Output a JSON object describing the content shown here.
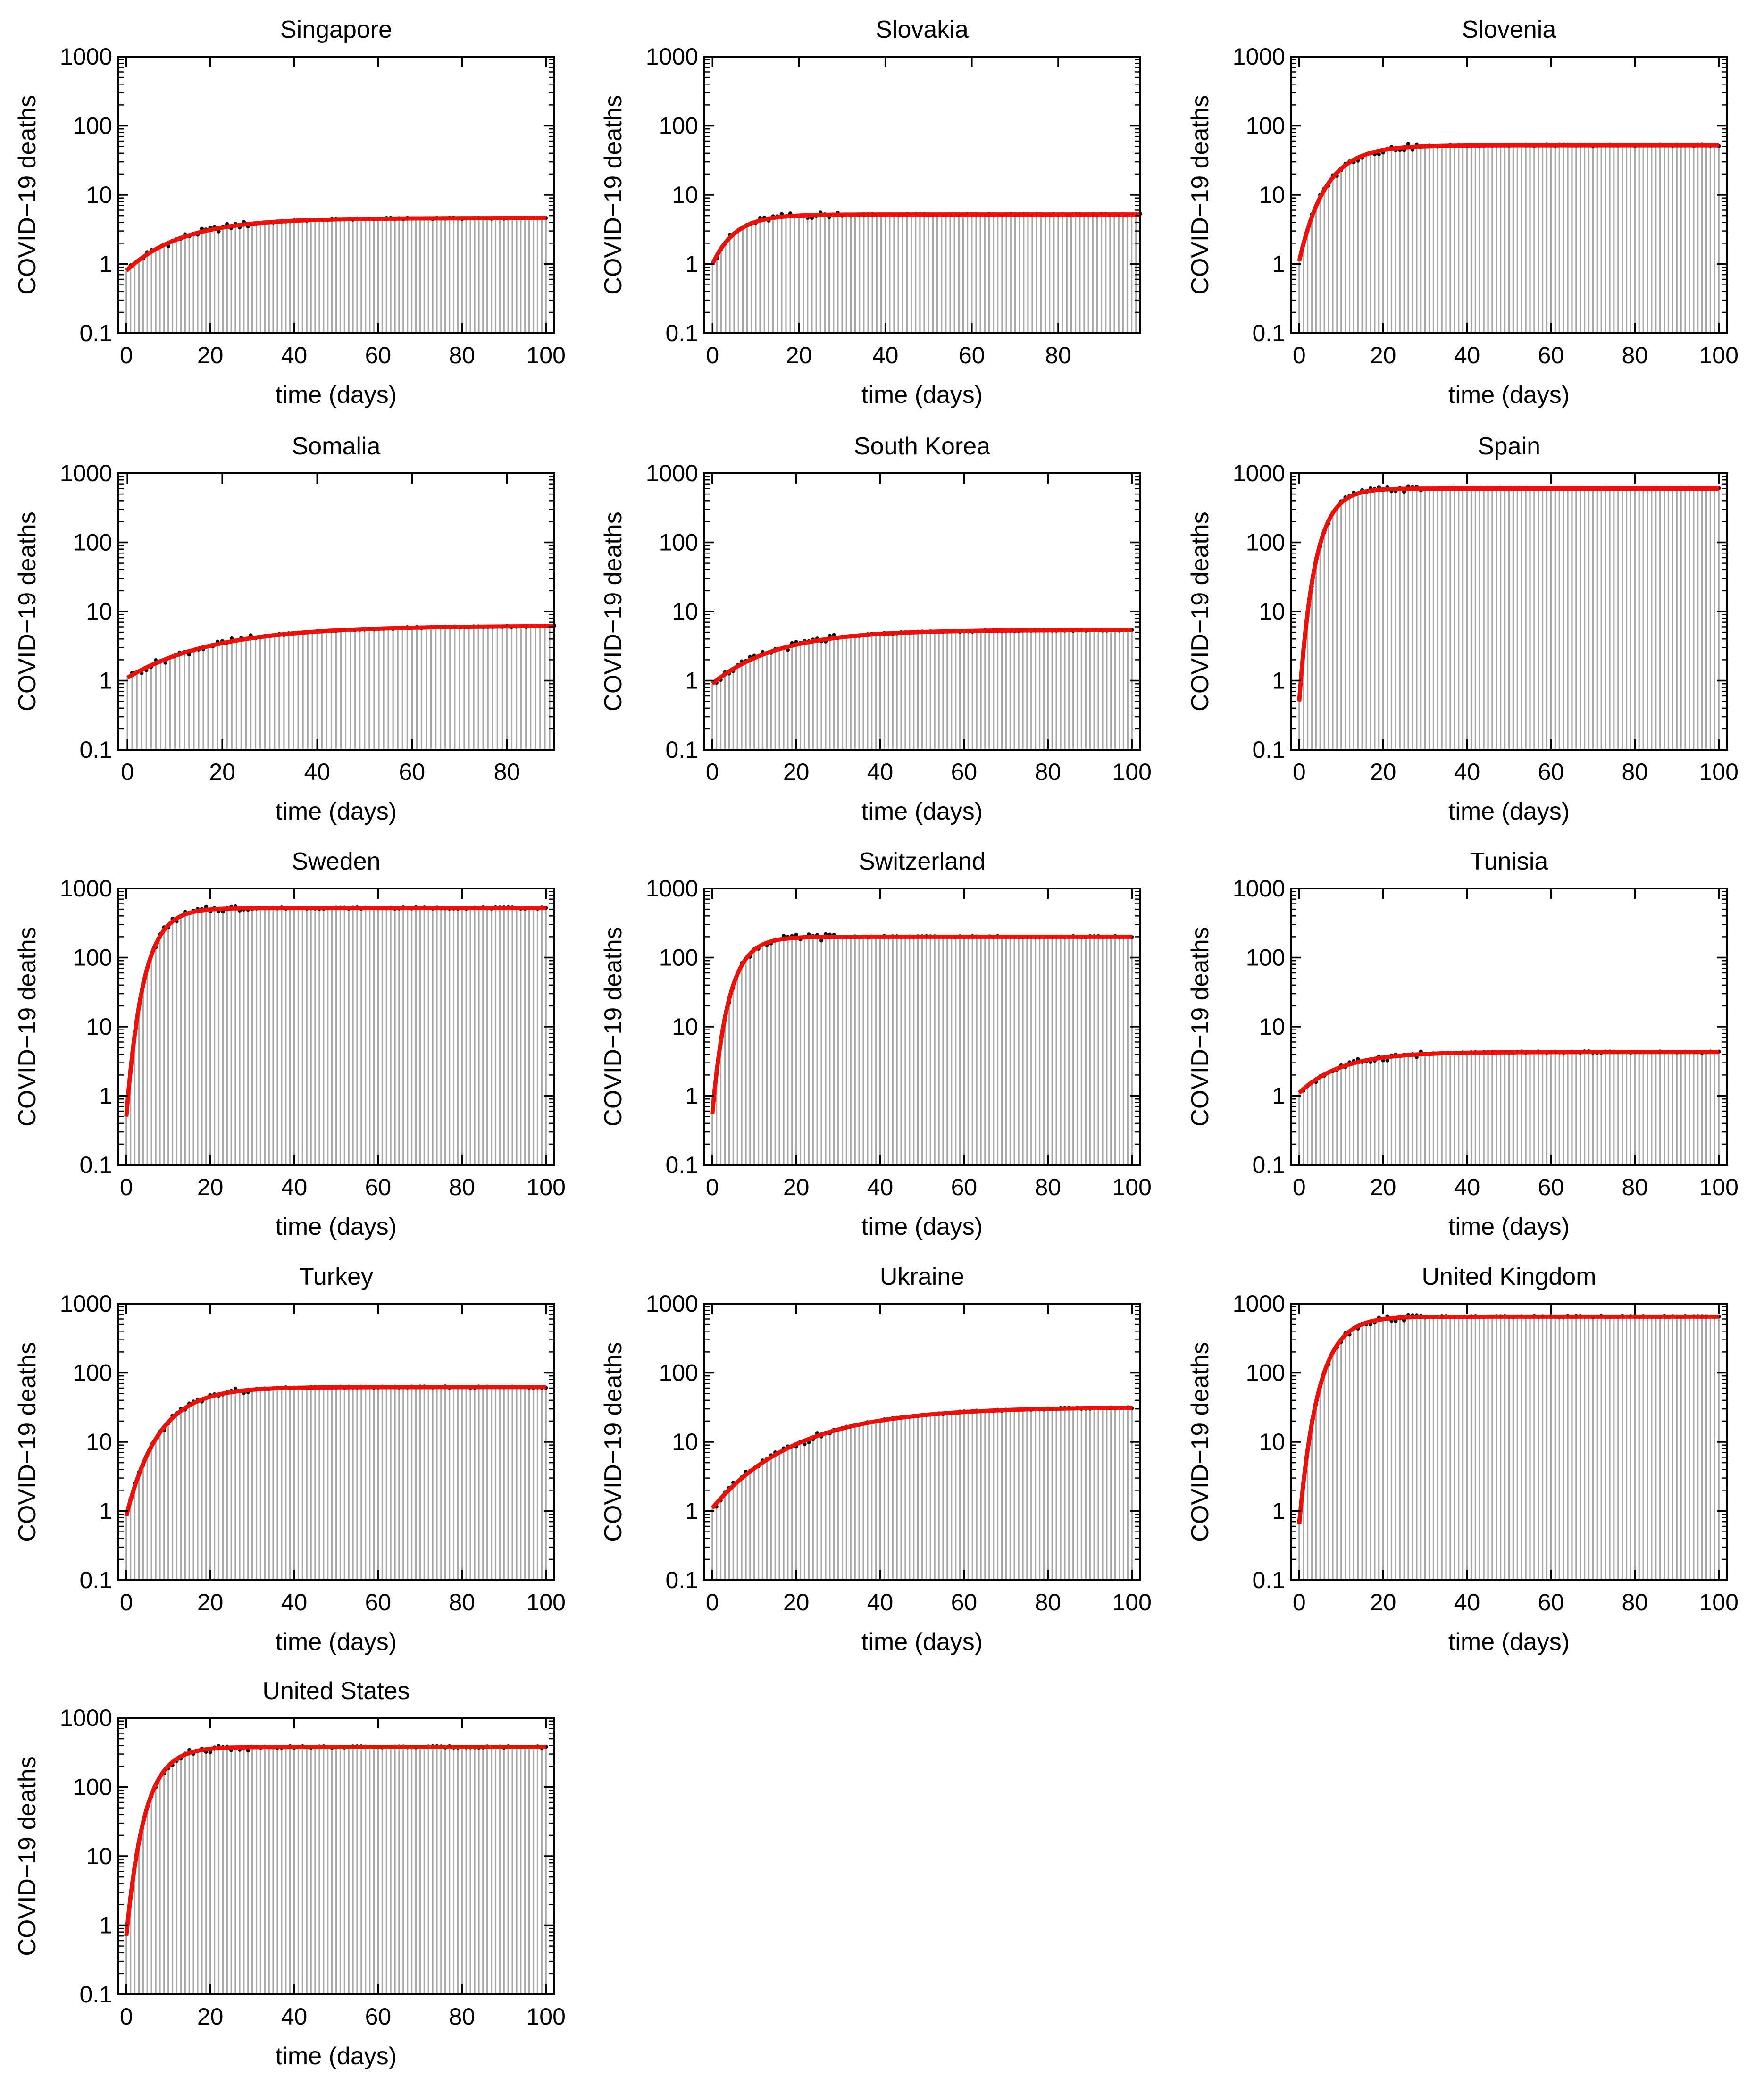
{
  "figure": {
    "ylabel": "COVID−19 deaths",
    "xlabel": "time (days)",
    "yscale": "log",
    "ylim": [
      0.1,
      1000
    ],
    "yticks": [
      0.1,
      1,
      10,
      100,
      1000
    ],
    "ytick_labels": [
      "0.1",
      "1",
      "10",
      "100",
      "1000"
    ],
    "colors": {
      "fit": "#e8120c",
      "bars": "#a8a8a8",
      "points": "#111111",
      "frame": "#000000"
    }
  },
  "chart_data": [
    {
      "type": "bar",
      "title": "Singapore",
      "xlabel": "time (days)",
      "ylabel": "COVID−19 deaths",
      "xlim": [
        -2,
        102
      ],
      "xticks": [
        0,
        20,
        40,
        60,
        80,
        100
      ],
      "ylim": [
        0.1,
        1000
      ],
      "n_days": 100,
      "series": [
        {
          "name": "observed",
          "type": "scatter"
        },
        {
          "name": "fit",
          "type": "line",
          "start": 0.8,
          "plateau": 4.6,
          "rate": 0.075
        }
      ]
    },
    {
      "type": "bar",
      "title": "Slovakia",
      "xlabel": "time (days)",
      "ylabel": "COVID−19 deaths",
      "xlim": [
        -2,
        99
      ],
      "xticks": [
        0,
        20,
        40,
        60,
        80
      ],
      "ylim": [
        0.1,
        1000
      ],
      "n_days": 99,
      "series": [
        {
          "name": "observed",
          "type": "scatter"
        },
        {
          "name": "fit",
          "type": "line",
          "start": 1.0,
          "plateau": 5.2,
          "rate": 0.19
        }
      ]
    },
    {
      "type": "bar",
      "title": "Slovenia",
      "xlabel": "time (days)",
      "ylabel": "COVID−19 deaths",
      "xlim": [
        -2,
        102
      ],
      "xticks": [
        0,
        20,
        40,
        60,
        80,
        100
      ],
      "ylim": [
        0.1,
        1000
      ],
      "n_days": 100,
      "series": [
        {
          "name": "observed",
          "type": "scatter"
        },
        {
          "name": "fit",
          "type": "line",
          "start": 1.1,
          "plateau": 52,
          "rate": 0.16
        }
      ]
    },
    {
      "type": "bar",
      "title": "Somalia",
      "xlabel": "time (days)",
      "ylabel": "COVID−19 deaths",
      "xlim": [
        -2,
        90
      ],
      "xticks": [
        0,
        20,
        40,
        60,
        80
      ],
      "ylim": [
        0.1,
        1000
      ],
      "n_days": 90,
      "series": [
        {
          "name": "observed",
          "type": "scatter"
        },
        {
          "name": "fit",
          "type": "line",
          "start": 1.1,
          "plateau": 6.2,
          "rate": 0.055
        }
      ]
    },
    {
      "type": "bar",
      "title": "South Korea",
      "xlabel": "time (days)",
      "ylabel": "COVID−19 deaths",
      "xlim": [
        -2,
        102
      ],
      "xticks": [
        0,
        20,
        40,
        60,
        80,
        100
      ],
      "ylim": [
        0.1,
        1000
      ],
      "n_days": 100,
      "series": [
        {
          "name": "observed",
          "type": "scatter"
        },
        {
          "name": "fit",
          "type": "line",
          "start": 0.9,
          "plateau": 5.4,
          "rate": 0.065
        }
      ]
    },
    {
      "type": "bar",
      "title": "Spain",
      "xlabel": "time (days)",
      "ylabel": "COVID−19 deaths",
      "xlim": [
        -2,
        102
      ],
      "xticks": [
        0,
        20,
        40,
        60,
        80,
        100
      ],
      "ylim": [
        0.1,
        1000
      ],
      "n_days": 100,
      "series": [
        {
          "name": "observed",
          "type": "scatter"
        },
        {
          "name": "fit",
          "type": "line",
          "start": 0.5,
          "plateau": 600,
          "rate": 0.27
        }
      ]
    },
    {
      "type": "bar",
      "title": "Sweden",
      "xlabel": "time (days)",
      "ylabel": "COVID−19 deaths",
      "xlim": [
        -2,
        102
      ],
      "xticks": [
        0,
        20,
        40,
        60,
        80,
        100
      ],
      "ylim": [
        0.1,
        1000
      ],
      "n_days": 100,
      "series": [
        {
          "name": "observed",
          "type": "scatter"
        },
        {
          "name": "fit",
          "type": "line",
          "start": 0.5,
          "plateau": 520,
          "rate": 0.25
        }
      ]
    },
    {
      "type": "bar",
      "title": "Switzerland",
      "xlabel": "time (days)",
      "ylabel": "COVID−19 deaths",
      "xlim": [
        -2,
        102
      ],
      "xticks": [
        0,
        20,
        40,
        60,
        80,
        100
      ],
      "ylim": [
        0.1,
        1000
      ],
      "n_days": 100,
      "series": [
        {
          "name": "observed",
          "type": "scatter"
        },
        {
          "name": "fit",
          "type": "line",
          "start": 0.55,
          "plateau": 200,
          "rate": 0.26
        }
      ]
    },
    {
      "type": "bar",
      "title": "Tunisia",
      "xlabel": "time (days)",
      "ylabel": "COVID−19 deaths",
      "xlim": [
        -2,
        102
      ],
      "xticks": [
        0,
        20,
        40,
        60,
        80,
        100
      ],
      "ylim": [
        0.1,
        1000
      ],
      "n_days": 100,
      "series": [
        {
          "name": "observed",
          "type": "scatter"
        },
        {
          "name": "fit",
          "type": "line",
          "start": 1.1,
          "plateau": 4.3,
          "rate": 0.1
        }
      ]
    },
    {
      "type": "bar",
      "title": "Turkey",
      "xlabel": "time (days)",
      "ylabel": "COVID−19 deaths",
      "xlim": [
        -2,
        102
      ],
      "xticks": [
        0,
        20,
        40,
        60,
        80,
        100
      ],
      "ylim": [
        0.1,
        1000
      ],
      "n_days": 100,
      "series": [
        {
          "name": "observed",
          "type": "scatter"
        },
        {
          "name": "fit",
          "type": "line",
          "start": 0.85,
          "plateau": 62,
          "rate": 0.13
        }
      ]
    },
    {
      "type": "bar",
      "title": "Ukraine",
      "xlabel": "time (days)",
      "ylabel": "COVID−19 deaths",
      "xlim": [
        -2,
        102
      ],
      "xticks": [
        0,
        20,
        40,
        60,
        80,
        100
      ],
      "ylim": [
        0.1,
        1000
      ],
      "n_days": 100,
      "series": [
        {
          "name": "observed",
          "type": "scatter"
        },
        {
          "name": "fit",
          "type": "line",
          "start": 1.1,
          "plateau": 32,
          "rate": 0.05
        }
      ]
    },
    {
      "type": "bar",
      "title": "United Kingdom",
      "xlabel": "time (days)",
      "ylabel": "COVID−19 deaths",
      "xlim": [
        -2,
        102
      ],
      "xticks": [
        0,
        20,
        40,
        60,
        80,
        100
      ],
      "ylim": [
        0.1,
        1000
      ],
      "n_days": 100,
      "series": [
        {
          "name": "observed",
          "type": "scatter"
        },
        {
          "name": "fit",
          "type": "line",
          "start": 0.65,
          "plateau": 650,
          "rate": 0.22
        }
      ]
    },
    {
      "type": "bar",
      "title": "United States",
      "xlabel": "time (days)",
      "ylabel": "COVID−19 deaths",
      "xlim": [
        -2,
        102
      ],
      "xticks": [
        0,
        20,
        40,
        60,
        80,
        100
      ],
      "ylim": [
        0.1,
        1000
      ],
      "n_days": 100,
      "series": [
        {
          "name": "observed",
          "type": "scatter"
        },
        {
          "name": "fit",
          "type": "line",
          "start": 0.7,
          "plateau": 380,
          "rate": 0.23
        }
      ]
    }
  ]
}
